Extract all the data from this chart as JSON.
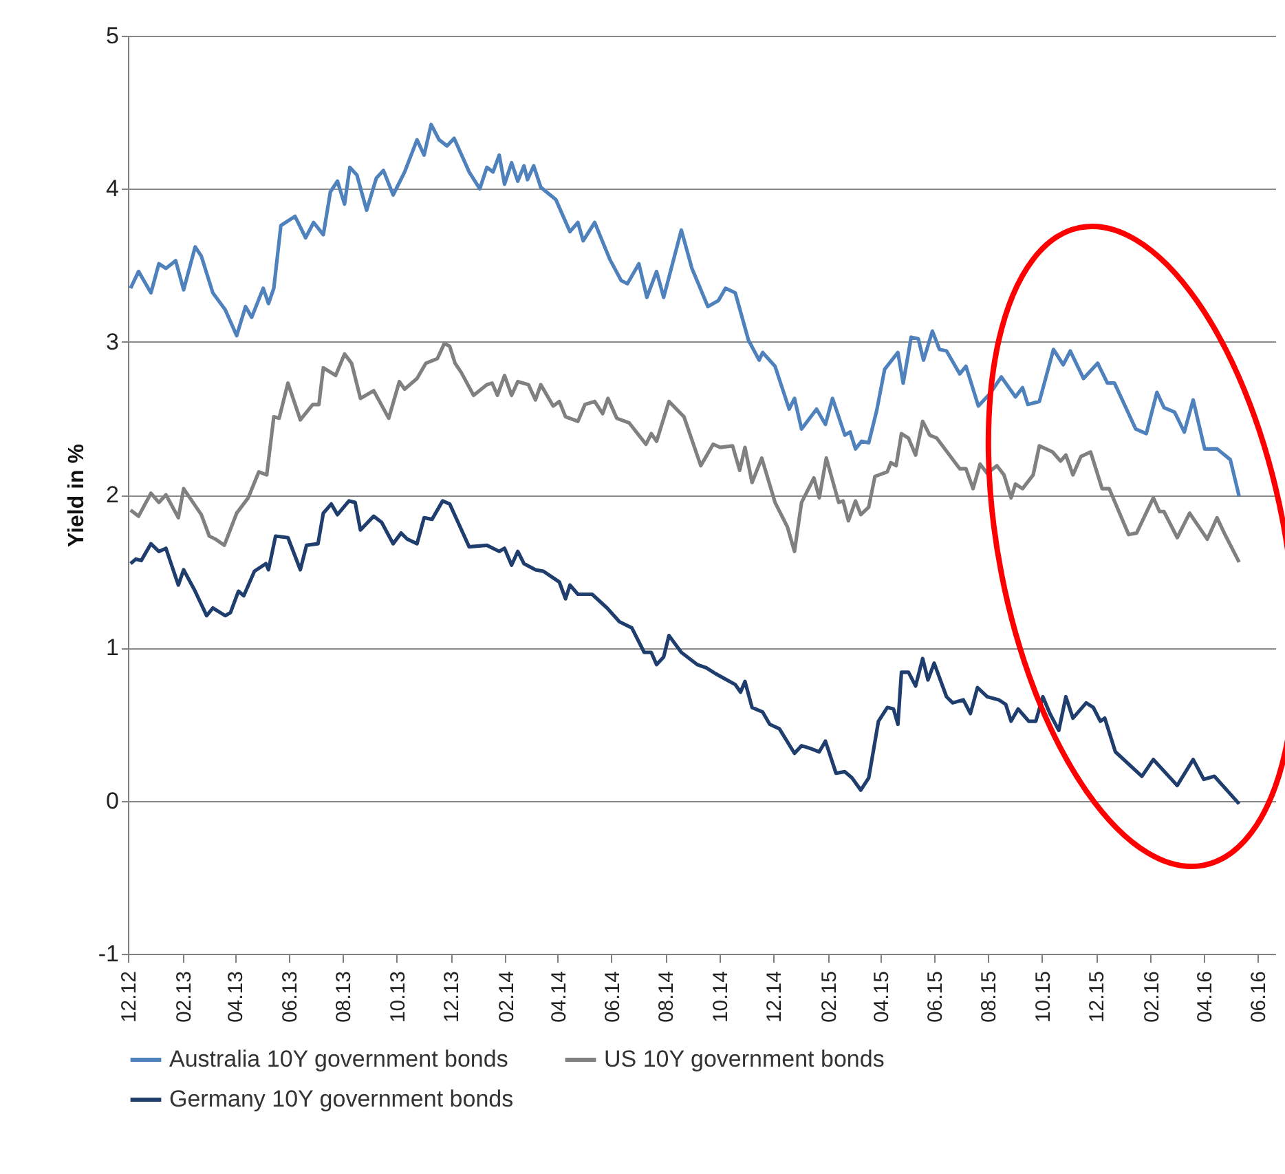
{
  "chart_data": {
    "type": "line",
    "ylabel": "Yield in %",
    "xlim": [
      "2012-12-01",
      "2016-06-21"
    ],
    "ylim": [
      -1,
      5
    ],
    "yticks": [
      -1,
      0,
      1,
      2,
      3,
      4,
      5
    ],
    "xticks": [
      {
        "value": "2012-12-01",
        "label": "12.12"
      },
      {
        "value": "2013-02-01",
        "label": "02.13"
      },
      {
        "value": "2013-04-01",
        "label": "04.13"
      },
      {
        "value": "2013-06-01",
        "label": "06.13"
      },
      {
        "value": "2013-08-01",
        "label": "08.13"
      },
      {
        "value": "2013-10-01",
        "label": "10.13"
      },
      {
        "value": "2013-12-01",
        "label": "12.13"
      },
      {
        "value": "2014-02-01",
        "label": "02.14"
      },
      {
        "value": "2014-04-01",
        "label": "04.14"
      },
      {
        "value": "2014-06-01",
        "label": "06.14"
      },
      {
        "value": "2014-08-01",
        "label": "08.14"
      },
      {
        "value": "2014-10-01",
        "label": "10.14"
      },
      {
        "value": "2014-12-01",
        "label": "12.14"
      },
      {
        "value": "2015-02-01",
        "label": "02.15"
      },
      {
        "value": "2015-04-01",
        "label": "04.15"
      },
      {
        "value": "2015-06-01",
        "label": "06.15"
      },
      {
        "value": "2015-08-01",
        "label": "08.15"
      },
      {
        "value": "2015-10-01",
        "label": "10.15"
      },
      {
        "value": "2015-12-01",
        "label": "12.15"
      },
      {
        "value": "2016-02-01",
        "label": "02.16"
      },
      {
        "value": "2016-04-01",
        "label": "04.16"
      },
      {
        "value": "2016-06-01",
        "label": "06.16"
      }
    ],
    "grid": "y",
    "legend": "bottom",
    "line_style": "solid",
    "series": [
      {
        "name": "Australia 10Y government bonds",
        "color": "#4f81bd",
        "x": [
          "2012-12-04",
          "2012-12-13",
          "2012-12-27",
          "2013-01-05",
          "2013-01-13",
          "2013-01-24",
          "2013-02-02",
          "2013-02-15",
          "2013-02-22",
          "2013-03-07",
          "2013-03-21",
          "2013-04-03",
          "2013-04-13",
          "2013-04-20",
          "2013-05-03",
          "2013-05-09",
          "2013-05-15",
          "2013-05-23",
          "2013-06-08",
          "2013-06-20",
          "2013-06-29",
          "2013-07-10",
          "2013-07-18",
          "2013-07-26",
          "2013-08-03",
          "2013-08-09",
          "2013-08-17",
          "2013-08-28",
          "2013-09-08",
          "2013-09-16",
          "2013-09-27",
          "2013-10-10",
          "2013-10-24",
          "2013-11-01",
          "2013-11-09",
          "2013-11-18",
          "2013-11-27",
          "2013-12-05",
          "2013-12-22",
          "2014-01-03",
          "2014-01-11",
          "2014-01-18",
          "2014-01-25",
          "2014-01-31",
          "2014-02-08",
          "2014-02-15",
          "2014-02-22",
          "2014-02-26",
          "2014-03-05",
          "2014-03-13",
          "2014-03-30",
          "2014-04-15",
          "2014-04-24",
          "2014-04-30",
          "2014-05-13",
          "2014-05-30",
          "2014-06-12",
          "2014-06-19",
          "2014-07-02",
          "2014-07-11",
          "2014-07-22",
          "2014-07-30",
          "2014-08-19",
          "2014-08-31",
          "2014-09-18",
          "2014-09-30",
          "2014-10-08",
          "2014-10-19",
          "2014-11-03",
          "2014-11-15",
          "2014-11-19",
          "2014-12-03",
          "2014-12-19",
          "2014-12-25",
          "2015-01-02",
          "2015-01-19",
          "2015-01-29",
          "2015-02-06",
          "2015-02-20",
          "2015-02-26",
          "2015-03-04",
          "2015-03-11",
          "2015-03-19",
          "2015-03-28",
          "2015-04-06",
          "2015-04-21",
          "2015-04-27",
          "2015-05-06",
          "2015-05-14",
          "2015-05-20",
          "2015-05-30",
          "2015-06-07",
          "2015-06-15",
          "2015-06-30",
          "2015-07-07",
          "2015-07-21",
          "2015-08-03",
          "2015-08-16",
          "2015-09-01",
          "2015-09-09",
          "2015-09-15",
          "2015-09-28",
          "2015-10-14",
          "2015-10-25",
          "2015-11-02",
          "2015-11-17",
          "2015-12-03",
          "2015-12-14",
          "2015-12-22",
          "2016-01-15",
          "2016-01-27",
          "2016-02-08",
          "2016-02-16",
          "2016-02-28",
          "2016-03-10",
          "2016-03-20",
          "2016-04-02",
          "2016-04-16",
          "2016-05-01",
          "2016-05-11"
        ],
        "values": [
          3.35,
          3.46,
          3.32,
          3.51,
          3.48,
          3.53,
          3.34,
          3.62,
          3.56,
          3.32,
          3.21,
          3.04,
          3.23,
          3.16,
          3.35,
          3.25,
          3.35,
          3.76,
          3.82,
          3.68,
          3.78,
          3.7,
          3.98,
          4.05,
          3.9,
          4.14,
          4.09,
          3.86,
          4.07,
          4.12,
          3.96,
          4.11,
          4.32,
          4.22,
          4.42,
          4.32,
          4.28,
          4.33,
          4.11,
          4.0,
          4.14,
          4.11,
          4.22,
          4.03,
          4.17,
          4.05,
          4.15,
          4.06,
          4.15,
          4.01,
          3.93,
          3.72,
          3.78,
          3.66,
          3.78,
          3.54,
          3.4,
          3.38,
          3.51,
          3.29,
          3.46,
          3.29,
          3.73,
          3.48,
          3.23,
          3.27,
          3.35,
          3.32,
          3.01,
          2.88,
          2.93,
          2.84,
          2.56,
          2.63,
          2.43,
          2.56,
          2.46,
          2.63,
          2.39,
          2.41,
          2.3,
          2.35,
          2.34,
          2.55,
          2.82,
          2.93,
          2.73,
          3.03,
          3.02,
          2.88,
          3.07,
          2.95,
          2.94,
          2.79,
          2.84,
          2.58,
          2.66,
          2.77,
          2.64,
          2.7,
          2.59,
          2.61,
          2.95,
          2.85,
          2.94,
          2.76,
          2.86,
          2.73,
          2.73,
          2.43,
          2.4,
          2.67,
          2.57,
          2.54,
          2.41,
          2.62,
          2.3,
          2.3,
          2.23,
          1.99
        ]
      },
      {
        "name": "US 10Y government bonds",
        "color": "#808080",
        "x": [
          "2012-12-04",
          "2012-12-13",
          "2012-12-27",
          "2013-01-05",
          "2013-01-13",
          "2013-01-27",
          "2013-02-02",
          "2013-02-22",
          "2013-03-03",
          "2013-03-10",
          "2013-03-20",
          "2013-04-03",
          "2013-04-16",
          "2013-04-28",
          "2013-05-07",
          "2013-05-15",
          "2013-05-21",
          "2013-05-31",
          "2013-06-14",
          "2013-06-28",
          "2013-07-05",
          "2013-07-10",
          "2013-07-24",
          "2013-08-03",
          "2013-08-11",
          "2013-08-21",
          "2013-09-05",
          "2013-09-22",
          "2013-10-04",
          "2013-10-10",
          "2013-10-24",
          "2013-11-03",
          "2013-11-16",
          "2013-11-24",
          "2013-11-30",
          "2013-12-06",
          "2013-12-13",
          "2013-12-27",
          "2014-01-11",
          "2014-01-17",
          "2014-01-23",
          "2014-01-31",
          "2014-02-08",
          "2014-02-15",
          "2014-02-27",
          "2014-03-07",
          "2014-03-13",
          "2014-03-27",
          "2014-04-03",
          "2014-04-10",
          "2014-04-24",
          "2014-05-02",
          "2014-05-13",
          "2014-05-22",
          "2014-05-28",
          "2014-06-07",
          "2014-06-21",
          "2014-07-10",
          "2014-07-16",
          "2014-07-22",
          "2014-08-05",
          "2014-08-22",
          "2014-09-10",
          "2014-09-24",
          "2014-10-02",
          "2014-10-16",
          "2014-10-24",
          "2014-10-30",
          "2014-11-07",
          "2014-11-18",
          "2014-12-03",
          "2014-12-17",
          "2014-12-25",
          "2015-01-02",
          "2015-01-16",
          "2015-01-22",
          "2015-01-30",
          "2015-02-13",
          "2015-02-18",
          "2015-02-24",
          "2015-03-04",
          "2015-03-10",
          "2015-03-19",
          "2015-03-26",
          "2015-04-09",
          "2015-04-13",
          "2015-04-19",
          "2015-04-25",
          "2015-05-03",
          "2015-05-11",
          "2015-05-19",
          "2015-05-27",
          "2015-06-04",
          "2015-06-30",
          "2015-07-07",
          "2015-07-15",
          "2015-07-23",
          "2015-07-31",
          "2015-08-11",
          "2015-08-19",
          "2015-08-27",
          "2015-09-01",
          "2015-09-09",
          "2015-09-21",
          "2015-09-28",
          "2015-10-13",
          "2015-10-22",
          "2015-10-28",
          "2015-11-05",
          "2015-11-14",
          "2015-11-25",
          "2015-12-08",
          "2015-12-16",
          "2016-01-07",
          "2016-01-16",
          "2016-02-04",
          "2016-02-11",
          "2016-02-16",
          "2016-03-02",
          "2016-03-16",
          "2016-04-05",
          "2016-04-16",
          "2016-04-25",
          "2016-05-11"
        ],
        "values": [
          1.9,
          1.86,
          2.01,
          1.95,
          2.0,
          1.85,
          2.04,
          1.87,
          1.73,
          1.71,
          1.67,
          1.88,
          1.98,
          2.15,
          2.13,
          2.51,
          2.5,
          2.73,
          2.49,
          2.59,
          2.59,
          2.83,
          2.78,
          2.92,
          2.86,
          2.63,
          2.68,
          2.5,
          2.74,
          2.69,
          2.76,
          2.86,
          2.89,
          2.99,
          2.97,
          2.86,
          2.8,
          2.65,
          2.72,
          2.73,
          2.65,
          2.78,
          2.65,
          2.74,
          2.72,
          2.62,
          2.72,
          2.58,
          2.61,
          2.51,
          2.48,
          2.59,
          2.61,
          2.53,
          2.63,
          2.5,
          2.47,
          2.33,
          2.4,
          2.35,
          2.61,
          2.51,
          2.19,
          2.33,
          2.31,
          2.32,
          2.16,
          2.31,
          2.08,
          2.24,
          1.95,
          1.79,
          1.63,
          1.95,
          2.11,
          1.98,
          2.24,
          1.95,
          1.96,
          1.83,
          1.96,
          1.87,
          1.92,
          2.12,
          2.15,
          2.21,
          2.19,
          2.4,
          2.37,
          2.26,
          2.48,
          2.39,
          2.37,
          2.17,
          2.17,
          2.04,
          2.2,
          2.14,
          2.19,
          2.13,
          1.98,
          2.07,
          2.04,
          2.13,
          2.32,
          2.28,
          2.22,
          2.26,
          2.13,
          2.25,
          2.28,
          2.04,
          2.04,
          1.74,
          1.75,
          1.98,
          1.89,
          1.89,
          1.72,
          1.88,
          1.71,
          1.85,
          1.74,
          1.56
        ]
      },
      {
        "name": "Germany 10Y government bonds",
        "color": "#1f3e6e",
        "x": [
          "2012-12-04",
          "2012-12-10",
          "2012-12-16",
          "2012-12-27",
          "2013-01-05",
          "2013-01-13",
          "2013-01-27",
          "2013-02-02",
          "2013-02-15",
          "2013-02-28",
          "2013-03-07",
          "2013-03-21",
          "2013-03-27",
          "2013-04-05",
          "2013-04-11",
          "2013-04-23",
          "2013-05-06",
          "2013-05-09",
          "2013-05-17",
          "2013-05-31",
          "2013-06-14",
          "2013-06-21",
          "2013-07-04",
          "2013-07-10",
          "2013-07-19",
          "2013-07-26",
          "2013-08-08",
          "2013-08-15",
          "2013-08-21",
          "2013-09-05",
          "2013-09-14",
          "2013-09-27",
          "2013-10-06",
          "2013-10-13",
          "2013-10-24",
          "2013-11-01",
          "2013-11-10",
          "2013-11-22",
          "2013-11-30",
          "2013-12-22",
          "2014-01-11",
          "2014-01-25",
          "2014-01-31",
          "2014-02-08",
          "2014-02-15",
          "2014-02-22",
          "2014-03-07",
          "2014-03-16",
          "2014-04-03",
          "2014-04-10",
          "2014-04-15",
          "2014-04-24",
          "2014-05-10",
          "2014-05-27",
          "2014-06-10",
          "2014-06-24",
          "2014-07-08",
          "2014-07-16",
          "2014-07-22",
          "2014-07-30",
          "2014-08-05",
          "2014-08-19",
          "2014-09-06",
          "2014-09-16",
          "2014-09-27",
          "2014-10-19",
          "2014-10-25",
          "2014-10-30",
          "2014-11-07",
          "2014-11-19",
          "2014-11-27",
          "2014-12-08",
          "2014-12-25",
          "2015-01-02",
          "2015-01-13",
          "2015-01-22",
          "2015-01-29",
          "2015-02-10",
          "2015-02-20",
          "2015-02-28",
          "2015-03-10",
          "2015-03-19",
          "2015-03-30",
          "2015-04-09",
          "2015-04-16",
          "2015-04-21",
          "2015-04-25",
          "2015-05-03",
          "2015-05-11",
          "2015-05-19",
          "2015-05-25",
          "2015-06-01",
          "2015-06-15",
          "2015-06-22",
          "2015-07-04",
          "2015-07-12",
          "2015-07-20",
          "2015-07-31",
          "2015-08-13",
          "2015-08-21",
          "2015-08-27",
          "2015-09-04",
          "2015-09-16",
          "2015-09-24",
          "2015-10-02",
          "2015-10-10",
          "2015-10-20",
          "2015-10-28",
          "2015-11-05",
          "2015-11-20",
          "2015-11-28",
          "2015-12-06",
          "2015-12-11",
          "2015-12-23",
          "2016-01-22",
          "2016-02-04",
          "2016-03-02",
          "2016-03-20",
          "2016-04-01",
          "2016-04-13",
          "2016-05-11"
        ],
        "values": [
          1.55,
          1.58,
          1.57,
          1.68,
          1.63,
          1.65,
          1.41,
          1.51,
          1.37,
          1.21,
          1.26,
          1.21,
          1.23,
          1.37,
          1.34,
          1.5,
          1.55,
          1.51,
          1.73,
          1.72,
          1.51,
          1.67,
          1.68,
          1.88,
          1.94,
          1.87,
          1.96,
          1.95,
          1.77,
          1.86,
          1.82,
          1.68,
          1.75,
          1.71,
          1.68,
          1.85,
          1.84,
          1.96,
          1.94,
          1.66,
          1.67,
          1.63,
          1.65,
          1.54,
          1.63,
          1.55,
          1.51,
          1.5,
          1.43,
          1.32,
          1.41,
          1.35,
          1.35,
          1.26,
          1.17,
          1.13,
          0.97,
          0.97,
          0.89,
          0.94,
          1.08,
          0.97,
          0.89,
          0.87,
          0.83,
          0.76,
          0.71,
          0.78,
          0.61,
          0.58,
          0.5,
          0.47,
          0.31,
          0.36,
          0.34,
          0.32,
          0.39,
          0.18,
          0.19,
          0.15,
          0.07,
          0.15,
          0.52,
          0.61,
          0.6,
          0.5,
          0.84,
          0.84,
          0.75,
          0.93,
          0.79,
          0.9,
          0.68,
          0.64,
          0.66,
          0.57,
          0.74,
          0.68,
          0.66,
          0.63,
          0.52,
          0.6,
          0.52,
          0.52,
          0.68,
          0.57,
          0.46,
          0.68,
          0.54,
          0.64,
          0.61,
          0.52,
          0.54,
          0.32,
          0.16,
          0.27,
          0.1,
          0.27,
          0.14,
          0.16,
          -0.02
        ]
      }
    ]
  }
}
